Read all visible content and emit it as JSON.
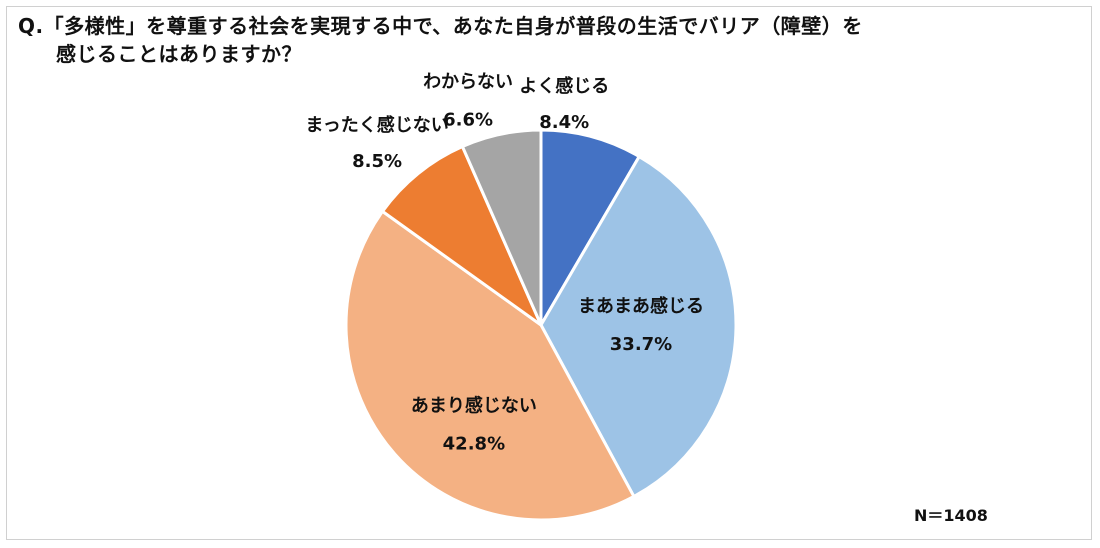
{
  "question": {
    "line1": "Q.「多様性」を尊重する社会を実現する中で、あなた自身が普段の生活でバリア（障壁）を",
    "line2": "感じることはありますか？"
  },
  "sample_size": "N＝1408",
  "chart_data": {
    "type": "pie",
    "start_angle_deg": 0,
    "direction": "clockwise",
    "slices": [
      {
        "label": "よく感じる",
        "value": 8.4,
        "value_label": "8.4%",
        "color": "#4472C4"
      },
      {
        "label": "まあまあ感じる",
        "value": 33.7,
        "value_label": "33.7%",
        "color": "#9DC3E6"
      },
      {
        "label": "あまり感じない",
        "value": 42.8,
        "value_label": "42.8%",
        "color": "#F4B183"
      },
      {
        "label": "まったく感じない",
        "value": 8.5,
        "value_label": "8.5%",
        "color": "#ED7D31"
      },
      {
        "label": "わからない",
        "value": 6.6,
        "value_label": "6.6%",
        "color": "#A5A5A5"
      }
    ]
  }
}
